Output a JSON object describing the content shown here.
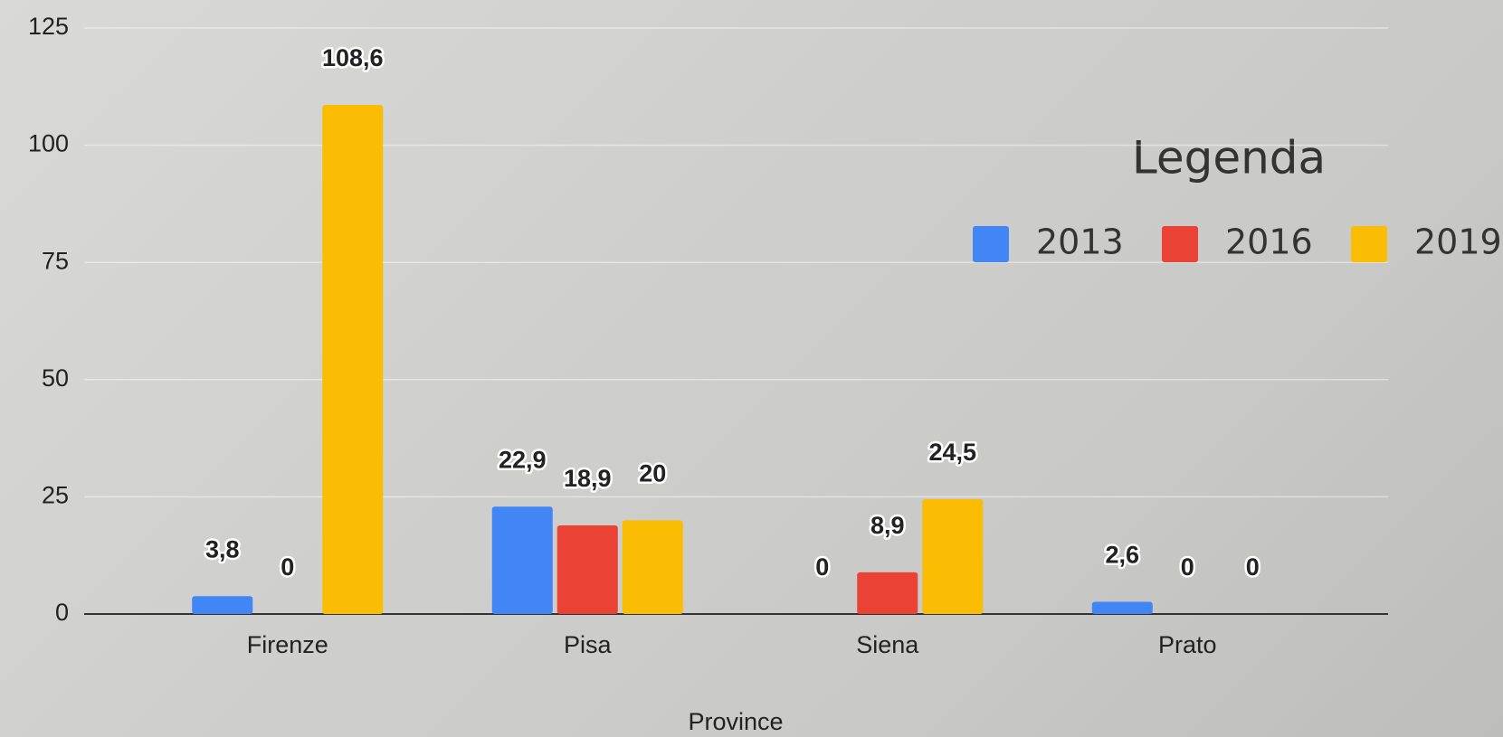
{
  "chart_data": {
    "type": "bar",
    "x_label": "Province",
    "legend_title": "Legenda",
    "legend": "right",
    "categories": [
      "Firenze",
      "Pisa",
      "Siena",
      "Prato"
    ],
    "series": [
      {
        "name": "2013",
        "color": "#4285f4",
        "values": [
          3.8,
          22.9,
          0,
          2.6
        ],
        "value_labels": [
          "3,8",
          "22,9",
          "0",
          "2,6"
        ]
      },
      {
        "name": "2016",
        "color": "#ea4335",
        "values": [
          0,
          18.9,
          8.9,
          0
        ],
        "value_labels": [
          "0",
          "18,9",
          "8,9",
          "0"
        ]
      },
      {
        "name": "2019",
        "color": "#fbbc04",
        "values": [
          108.6,
          20,
          24.5,
          0
        ],
        "value_labels": [
          "108,6",
          "20",
          "24,5",
          "0"
        ]
      }
    ],
    "ylim": [
      0,
      125
    ],
    "yticks": [
      0,
      25,
      50,
      75,
      100,
      125
    ],
    "grid": true
  }
}
